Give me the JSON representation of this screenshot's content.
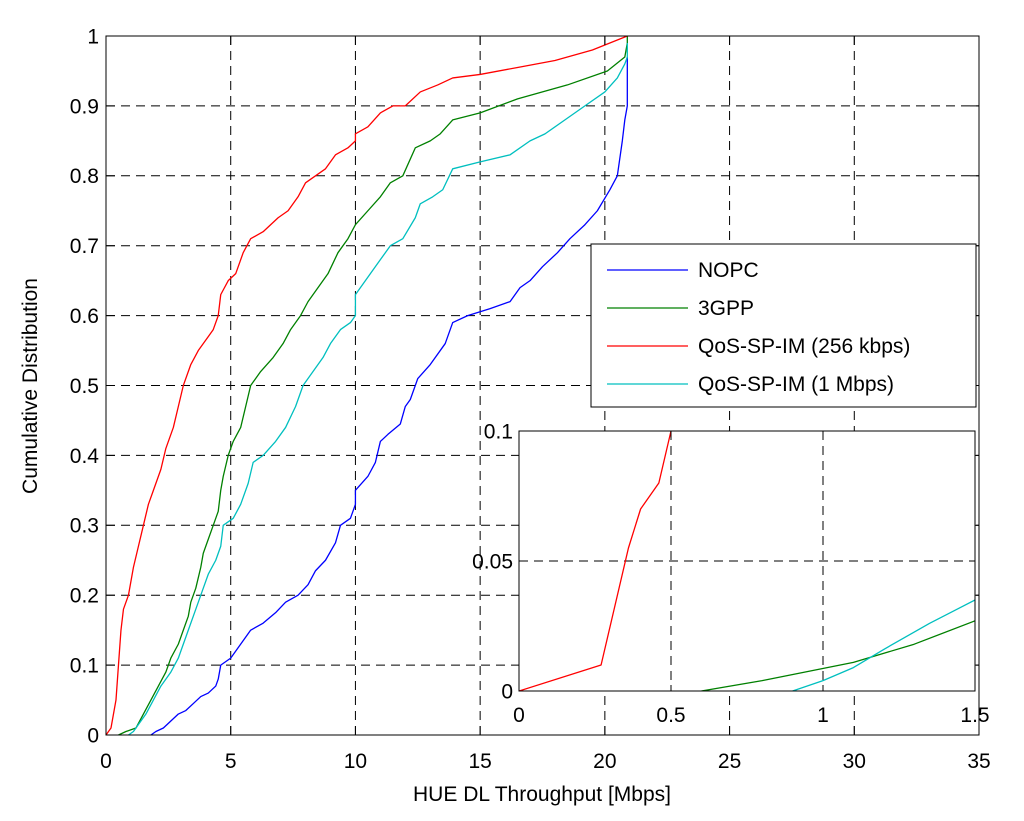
{
  "chart_data": [
    {
      "type": "line",
      "role": "main",
      "xlabel": "HUE DL Throughput [Mbps]",
      "ylabel": "Cumulative Distribution",
      "xlim": [
        0,
        35
      ],
      "ylim": [
        0,
        1
      ],
      "xticks": [
        0,
        5,
        10,
        15,
        20,
        25,
        30,
        35
      ],
      "yticks": [
        0,
        0.1,
        0.2,
        0.3,
        0.4,
        0.5,
        0.6,
        0.7,
        0.8,
        0.9,
        1
      ],
      "xtick_labels": [
        "0",
        "5",
        "10",
        "15",
        "20",
        "25",
        "30",
        "35"
      ],
      "ytick_labels": [
        "0",
        "0.1",
        "0.2",
        "0.3",
        "0.4",
        "0.5",
        "0.6",
        "0.7",
        "0.8",
        "0.9",
        "1"
      ],
      "grid": true,
      "legend": "right-middle",
      "series": [
        {
          "name": "NOPC",
          "color": "#0000ff",
          "points": [
            [
              1.8,
              0
            ],
            [
              2.0,
              0.005
            ],
            [
              2.3,
              0.01
            ],
            [
              2.6,
              0.02
            ],
            [
              2.9,
              0.03
            ],
            [
              3.2,
              0.035
            ],
            [
              3.5,
              0.045
            ],
            [
              3.8,
              0.055
            ],
            [
              4.1,
              0.06
            ],
            [
              4.4,
              0.07
            ],
            [
              4.5,
              0.08
            ],
            [
              4.6,
              0.1
            ],
            [
              5.0,
              0.11
            ],
            [
              5.4,
              0.13
            ],
            [
              5.8,
              0.15
            ],
            [
              6.3,
              0.16
            ],
            [
              6.8,
              0.175
            ],
            [
              7.2,
              0.19
            ],
            [
              7.7,
              0.2
            ],
            [
              8.1,
              0.215
            ],
            [
              8.4,
              0.235
            ],
            [
              8.8,
              0.25
            ],
            [
              9.2,
              0.275
            ],
            [
              9.4,
              0.3
            ],
            [
              9.8,
              0.31
            ],
            [
              10.0,
              0.33
            ],
            [
              10.0,
              0.35
            ],
            [
              10.5,
              0.37
            ],
            [
              10.8,
              0.39
            ],
            [
              11.0,
              0.42
            ],
            [
              11.3,
              0.43
            ],
            [
              11.8,
              0.445
            ],
            [
              12.0,
              0.47
            ],
            [
              12.2,
              0.48
            ],
            [
              12.5,
              0.51
            ],
            [
              13.0,
              0.53
            ],
            [
              13.6,
              0.56
            ],
            [
              13.9,
              0.59
            ],
            [
              14.5,
              0.6
            ],
            [
              15.4,
              0.61
            ],
            [
              16.2,
              0.62
            ],
            [
              16.6,
              0.64
            ],
            [
              17.0,
              0.65
            ],
            [
              17.5,
              0.67
            ],
            [
              18.1,
              0.69
            ],
            [
              18.6,
              0.71
            ],
            [
              19.2,
              0.73
            ],
            [
              19.7,
              0.75
            ],
            [
              20.2,
              0.78
            ],
            [
              20.5,
              0.8
            ],
            [
              20.7,
              0.85
            ],
            [
              20.8,
              0.88
            ],
            [
              20.9,
              0.9
            ],
            [
              20.9,
              0.97
            ]
          ]
        },
        {
          "name": "3GPP",
          "color": "#008000",
          "points": [
            [
              0.5,
              0
            ],
            [
              0.8,
              0.005
            ],
            [
              1.2,
              0.01
            ],
            [
              1.5,
              0.03
            ],
            [
              1.8,
              0.05
            ],
            [
              2.1,
              0.07
            ],
            [
              2.4,
              0.09
            ],
            [
              2.6,
              0.11
            ],
            [
              2.9,
              0.13
            ],
            [
              3.1,
              0.15
            ],
            [
              3.3,
              0.17
            ],
            [
              3.4,
              0.19
            ],
            [
              3.6,
              0.21
            ],
            [
              3.8,
              0.24
            ],
            [
              3.9,
              0.26
            ],
            [
              4.1,
              0.28
            ],
            [
              4.3,
              0.3
            ],
            [
              4.5,
              0.32
            ],
            [
              4.6,
              0.35
            ],
            [
              4.7,
              0.37
            ],
            [
              4.9,
              0.4
            ],
            [
              5.1,
              0.42
            ],
            [
              5.4,
              0.44
            ],
            [
              5.6,
              0.47
            ],
            [
              5.8,
              0.5
            ],
            [
              6.2,
              0.52
            ],
            [
              6.7,
              0.54
            ],
            [
              7.1,
              0.56
            ],
            [
              7.4,
              0.58
            ],
            [
              7.8,
              0.6
            ],
            [
              8.1,
              0.62
            ],
            [
              8.5,
              0.64
            ],
            [
              8.9,
              0.66
            ],
            [
              9.3,
              0.69
            ],
            [
              9.7,
              0.71
            ],
            [
              10.0,
              0.73
            ],
            [
              10.5,
              0.75
            ],
            [
              11.0,
              0.77
            ],
            [
              11.4,
              0.79
            ],
            [
              11.9,
              0.8
            ],
            [
              12.4,
              0.84
            ],
            [
              13.0,
              0.85
            ],
            [
              13.4,
              0.86
            ],
            [
              13.9,
              0.88
            ],
            [
              15.0,
              0.89
            ],
            [
              16.5,
              0.91
            ],
            [
              18.5,
              0.93
            ],
            [
              20.1,
              0.95
            ],
            [
              20.8,
              0.97
            ],
            [
              20.9,
              0.99
            ],
            [
              20.9,
              1.0
            ]
          ]
        },
        {
          "name": "QoS-SP-IM (256 kbps)",
          "color": "#ff0000",
          "points": [
            [
              0,
              0
            ],
            [
              0.2,
              0.01
            ],
            [
              0.4,
              0.05
            ],
            [
              0.5,
              0.1
            ],
            [
              0.6,
              0.15
            ],
            [
              0.7,
              0.18
            ],
            [
              0.9,
              0.2
            ],
            [
              1.1,
              0.24
            ],
            [
              1.3,
              0.27
            ],
            [
              1.5,
              0.3
            ],
            [
              1.7,
              0.33
            ],
            [
              1.9,
              0.35
            ],
            [
              2.2,
              0.38
            ],
            [
              2.4,
              0.41
            ],
            [
              2.7,
              0.44
            ],
            [
              2.9,
              0.47
            ],
            [
              3.1,
              0.5
            ],
            [
              3.4,
              0.53
            ],
            [
              3.7,
              0.55
            ],
            [
              4.1,
              0.57
            ],
            [
              4.3,
              0.58
            ],
            [
              4.5,
              0.6
            ],
            [
              4.6,
              0.63
            ],
            [
              4.9,
              0.65
            ],
            [
              5.2,
              0.66
            ],
            [
              5.5,
              0.69
            ],
            [
              5.8,
              0.71
            ],
            [
              6.3,
              0.72
            ],
            [
              6.9,
              0.74
            ],
            [
              7.3,
              0.75
            ],
            [
              7.7,
              0.77
            ],
            [
              8.0,
              0.79
            ],
            [
              8.4,
              0.8
            ],
            [
              8.8,
              0.81
            ],
            [
              9.2,
              0.83
            ],
            [
              9.7,
              0.84
            ],
            [
              10.0,
              0.85
            ],
            [
              10.0,
              0.86
            ],
            [
              10.5,
              0.87
            ],
            [
              11.0,
              0.89
            ],
            [
              11.5,
              0.9
            ],
            [
              12.0,
              0.9
            ],
            [
              12.6,
              0.92
            ],
            [
              13.3,
              0.93
            ],
            [
              13.9,
              0.94
            ],
            [
              15.0,
              0.945
            ],
            [
              16.5,
              0.955
            ],
            [
              18.0,
              0.965
            ],
            [
              19.5,
              0.98
            ],
            [
              20.2,
              0.99
            ],
            [
              20.9,
              1.0
            ]
          ]
        },
        {
          "name": "QoS-SP-IM (1 Mbps)",
          "color": "#00bfbf",
          "points": [
            [
              0.9,
              0
            ],
            [
              1.1,
              0.005
            ],
            [
              1.3,
              0.015
            ],
            [
              1.6,
              0.03
            ],
            [
              1.9,
              0.05
            ],
            [
              2.2,
              0.07
            ],
            [
              2.6,
              0.09
            ],
            [
              2.9,
              0.11
            ],
            [
              3.1,
              0.13
            ],
            [
              3.3,
              0.15
            ],
            [
              3.5,
              0.17
            ],
            [
              3.7,
              0.19
            ],
            [
              3.9,
              0.21
            ],
            [
              4.1,
              0.23
            ],
            [
              4.4,
              0.25
            ],
            [
              4.6,
              0.27
            ],
            [
              4.7,
              0.3
            ],
            [
              5.1,
              0.31
            ],
            [
              5.4,
              0.33
            ],
            [
              5.7,
              0.36
            ],
            [
              5.9,
              0.39
            ],
            [
              6.3,
              0.4
            ],
            [
              6.8,
              0.42
            ],
            [
              7.2,
              0.44
            ],
            [
              7.6,
              0.47
            ],
            [
              7.9,
              0.5
            ],
            [
              8.3,
              0.52
            ],
            [
              8.7,
              0.54
            ],
            [
              9.0,
              0.56
            ],
            [
              9.4,
              0.58
            ],
            [
              9.8,
              0.59
            ],
            [
              10.0,
              0.6
            ],
            [
              10.0,
              0.63
            ],
            [
              10.6,
              0.66
            ],
            [
              11.0,
              0.68
            ],
            [
              11.4,
              0.7
            ],
            [
              11.9,
              0.71
            ],
            [
              12.4,
              0.74
            ],
            [
              12.6,
              0.76
            ],
            [
              13.1,
              0.77
            ],
            [
              13.5,
              0.78
            ],
            [
              13.9,
              0.81
            ],
            [
              15.0,
              0.82
            ],
            [
              16.2,
              0.83
            ],
            [
              17.0,
              0.85
            ],
            [
              17.6,
              0.86
            ],
            [
              18.4,
              0.88
            ],
            [
              19.2,
              0.9
            ],
            [
              20.0,
              0.92
            ],
            [
              20.5,
              0.94
            ],
            [
              20.8,
              0.96
            ],
            [
              20.9,
              0.97
            ],
            [
              20.9,
              0.99
            ]
          ]
        }
      ]
    },
    {
      "type": "line",
      "role": "inset",
      "xlim": [
        0,
        1.5
      ],
      "ylim": [
        0,
        0.1
      ],
      "xticks": [
        0,
        0.5,
        1,
        1.5
      ],
      "yticks": [
        0,
        0.05,
        0.1
      ],
      "xtick_labels": [
        "0",
        "0.5",
        "1",
        "1.5"
      ],
      "ytick_labels": [
        "0",
        "0.05",
        "0.1"
      ],
      "grid": true,
      "series": [
        {
          "name": "QoS-SP-IM (256 kbps)",
          "color": "#ff0000",
          "points": [
            [
              0,
              0
            ],
            [
              0.27,
              0.01
            ],
            [
              0.33,
              0.04
            ],
            [
              0.36,
              0.055
            ],
            [
              0.4,
              0.07
            ],
            [
              0.46,
              0.08
            ],
            [
              0.5,
              0.1
            ],
            [
              0.52,
              0.11
            ]
          ]
        },
        {
          "name": "3GPP",
          "color": "#008000",
          "points": [
            [
              0.6,
              0
            ],
            [
              0.8,
              0.004
            ],
            [
              1.1,
              0.011
            ],
            [
              1.3,
              0.018
            ],
            [
              1.5,
              0.027
            ]
          ]
        },
        {
          "name": "QoS-SP-IM (1 Mbps)",
          "color": "#00bfbf",
          "points": [
            [
              0.9,
              0
            ],
            [
              1.0,
              0.004
            ],
            [
              1.1,
              0.009
            ],
            [
              1.2,
              0.016
            ],
            [
              1.35,
              0.026
            ],
            [
              1.45,
              0.032
            ],
            [
              1.5,
              0.035
            ]
          ]
        }
      ]
    }
  ]
}
